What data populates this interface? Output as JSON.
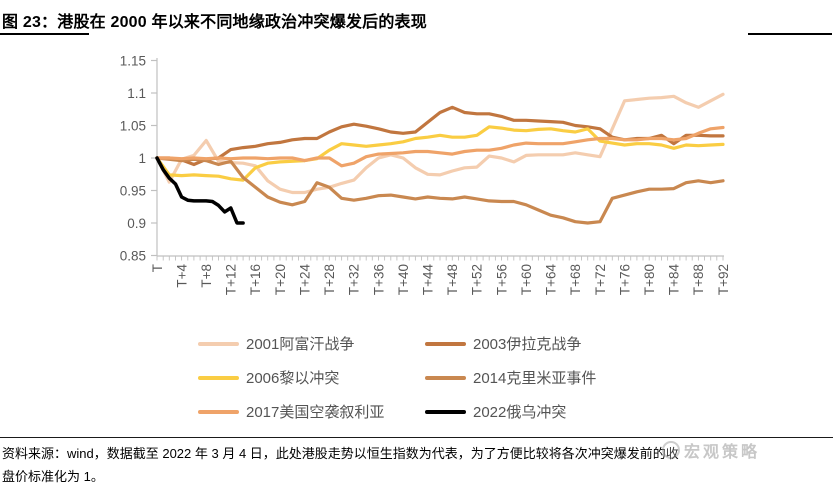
{
  "header": {
    "title": "图 23：港股在 2000 年以来不同地缘政治冲突爆发后的表现"
  },
  "chart_data": {
    "type": "line",
    "title": "港股在 2000 年以来不同地缘政治冲突爆发后的表现",
    "xlabel": "",
    "ylabel": "",
    "ylim": [
      0.85,
      1.15
    ],
    "x_range": [
      0,
      92
    ],
    "grid": false,
    "legend_position": "bottom",
    "axis_color": "#c0c0c0",
    "tick_label_color": "#595959",
    "y_ticks": [
      "0.85",
      "0.9",
      "0.95",
      "1",
      "1.05",
      "1.1",
      "1.15"
    ],
    "x_tick_labels": [
      "T",
      "T+4",
      "T+8",
      "T+12",
      "T+16",
      "T+20",
      "T+24",
      "T+28",
      "T+32",
      "T+36",
      "T+40",
      "T+44",
      "T+48",
      "T+52",
      "T+56",
      "T+60",
      "T+64",
      "T+68",
      "T+72",
      "T+76",
      "T+80",
      "T+84",
      "T+88",
      "T+92"
    ],
    "series": [
      {
        "name": "2001阿富汗战争",
        "color": "#F4CDAF",
        "x": [
          0,
          2,
          4,
          6,
          8,
          10,
          12,
          14,
          16,
          18,
          20,
          22,
          24,
          26,
          28,
          30,
          32,
          34,
          36,
          38,
          40,
          42,
          44,
          46,
          48,
          50,
          52,
          54,
          56,
          58,
          60,
          62,
          64,
          66,
          68,
          70,
          72,
          74,
          76,
          78,
          80,
          82,
          84,
          86,
          88,
          90,
          92
        ],
        "values": [
          1.0,
          0.963,
          0.998,
          1.004,
          1.027,
          0.995,
          0.993,
          0.992,
          0.988,
          0.965,
          0.952,
          0.947,
          0.947,
          0.952,
          0.955,
          0.961,
          0.966,
          0.985,
          1.0,
          1.005,
          1.0,
          0.985,
          0.975,
          0.974,
          0.98,
          0.985,
          0.986,
          1.003,
          1.0,
          0.994,
          1.004,
          1.005,
          1.005,
          1.005,
          1.008,
          1.005,
          1.002,
          1.045,
          1.088,
          1.09,
          1.092,
          1.093,
          1.095,
          1.085,
          1.078,
          1.088,
          1.098
        ]
      },
      {
        "name": "2003伊拉克战争",
        "color": "#C1763F",
        "x": [
          0,
          2,
          4,
          6,
          8,
          10,
          12,
          14,
          16,
          18,
          20,
          22,
          24,
          26,
          28,
          30,
          32,
          34,
          36,
          38,
          40,
          42,
          44,
          46,
          48,
          50,
          52,
          54,
          56,
          58,
          60,
          62,
          64,
          66,
          68,
          70,
          72,
          74,
          76,
          78,
          80,
          82,
          84,
          86,
          88,
          90,
          92
        ],
        "values": [
          1.0,
          1.0,
          0.997,
          0.99,
          0.998,
          1.0,
          1.013,
          1.016,
          1.018,
          1.022,
          1.024,
          1.028,
          1.03,
          1.03,
          1.04,
          1.048,
          1.052,
          1.049,
          1.045,
          1.04,
          1.038,
          1.04,
          1.055,
          1.07,
          1.078,
          1.07,
          1.068,
          1.068,
          1.064,
          1.058,
          1.058,
          1.057,
          1.056,
          1.055,
          1.05,
          1.048,
          1.045,
          1.032,
          1.028,
          1.03,
          1.03,
          1.035,
          1.022,
          1.035,
          1.035,
          1.034,
          1.034
        ]
      },
      {
        "name": "2006黎以冲突",
        "color": "#FACD43",
        "x": [
          0,
          2,
          4,
          6,
          8,
          10,
          12,
          14,
          16,
          18,
          20,
          22,
          24,
          26,
          28,
          30,
          32,
          34,
          36,
          38,
          40,
          42,
          44,
          46,
          48,
          50,
          52,
          54,
          56,
          58,
          60,
          62,
          64,
          66,
          68,
          70,
          72,
          74,
          76,
          78,
          80,
          82,
          84,
          86,
          88,
          90,
          92
        ],
        "values": [
          1.0,
          0.974,
          0.973,
          0.974,
          0.973,
          0.972,
          0.968,
          0.966,
          0.985,
          0.992,
          0.994,
          0.995,
          0.996,
          0.999,
          1.012,
          1.022,
          1.02,
          1.018,
          1.02,
          1.022,
          1.025,
          1.03,
          1.032,
          1.035,
          1.032,
          1.032,
          1.035,
          1.048,
          1.046,
          1.043,
          1.042,
          1.044,
          1.045,
          1.042,
          1.04,
          1.045,
          1.026,
          1.023,
          1.02,
          1.022,
          1.022,
          1.02,
          1.015,
          1.02,
          1.019,
          1.02,
          1.021
        ]
      },
      {
        "name": "2014克里米亚事件",
        "color": "#C98850",
        "x": [
          0,
          2,
          4,
          6,
          8,
          10,
          12,
          14,
          16,
          18,
          20,
          22,
          24,
          26,
          28,
          30,
          32,
          34,
          36,
          38,
          40,
          42,
          44,
          46,
          48,
          50,
          52,
          54,
          56,
          58,
          60,
          62,
          64,
          66,
          68,
          70,
          72,
          74,
          76,
          78,
          80,
          82,
          84,
          86,
          88,
          90,
          92
        ],
        "values": [
          1.0,
          0.998,
          0.996,
          0.998,
          0.996,
          0.99,
          0.995,
          0.97,
          0.955,
          0.94,
          0.932,
          0.928,
          0.933,
          0.962,
          0.955,
          0.938,
          0.935,
          0.938,
          0.942,
          0.943,
          0.94,
          0.937,
          0.94,
          0.938,
          0.937,
          0.94,
          0.937,
          0.934,
          0.933,
          0.933,
          0.928,
          0.92,
          0.912,
          0.908,
          0.902,
          0.9,
          0.902,
          0.938,
          0.943,
          0.948,
          0.952,
          0.952,
          0.953,
          0.962,
          0.965,
          0.962,
          0.965
        ]
      },
      {
        "name": "2017美国空袭叙利亚",
        "color": "#EFA369",
        "x": [
          0,
          2,
          4,
          6,
          8,
          10,
          12,
          14,
          16,
          18,
          20,
          22,
          24,
          26,
          28,
          30,
          32,
          34,
          36,
          38,
          40,
          42,
          44,
          46,
          48,
          50,
          52,
          54,
          56,
          58,
          60,
          62,
          64,
          66,
          68,
          70,
          72,
          74,
          76,
          78,
          80,
          82,
          84,
          86,
          88,
          90,
          92
        ],
        "values": [
          1.0,
          1.0,
          0.999,
          1.0,
          0.999,
          1.0,
          0.999,
          1.0,
          1.0,
          0.999,
          1.0,
          1.0,
          0.996,
          1.0,
          1.0,
          0.988,
          0.992,
          1.002,
          1.006,
          1.007,
          1.008,
          1.01,
          1.01,
          1.008,
          1.006,
          1.01,
          1.012,
          1.012,
          1.015,
          1.02,
          1.023,
          1.022,
          1.022,
          1.022,
          1.025,
          1.028,
          1.03,
          1.03,
          1.028,
          1.028,
          1.03,
          1.03,
          1.028,
          1.03,
          1.038,
          1.045,
          1.047
        ]
      },
      {
        "name": "2022俄乌冲突",
        "color": "#000000",
        "x": [
          0,
          1,
          2,
          3,
          4,
          5,
          6,
          7,
          8,
          9,
          10,
          11,
          12,
          13,
          14
        ],
        "values": [
          1.0,
          0.982,
          0.969,
          0.96,
          0.94,
          0.935,
          0.934,
          0.934,
          0.934,
          0.933,
          0.927,
          0.917,
          0.923,
          0.9,
          0.9
        ]
      }
    ]
  },
  "source_note": {
    "line1": "资料来源：wind，数据截至 2022 年 3 月 4 日，此处港股走势以恒生指数为代表，为了方便比较将各次冲突爆发前的收",
    "line2": "盘价标准化为 1。"
  },
  "watermark": {
    "text": "宏观策略"
  }
}
